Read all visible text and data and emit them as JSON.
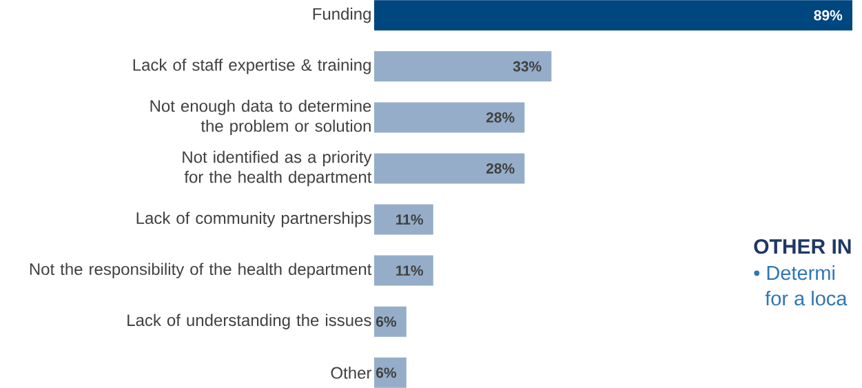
{
  "chart_data": {
    "type": "bar",
    "orientation": "horizontal",
    "categories": [
      "Funding",
      "Lack of staff expertise & training",
      "Not enough data to determine the problem or solution",
      "Not identified as a priority for the health department",
      "Lack of community partnerships",
      "Not the responsibility of the health department",
      "Lack of understanding the issues",
      "Other"
    ],
    "values": [
      89,
      33,
      28,
      28,
      11,
      11,
      6,
      6
    ],
    "colors": [
      "#00467f",
      "#95adc8",
      "#95adc8",
      "#95adc8",
      "#95adc8",
      "#95adc8",
      "#95adc8",
      "#95adc8"
    ],
    "value_labels": [
      "89%",
      "33%",
      "28%",
      "28%",
      "11%",
      "11%",
      "6%",
      "6%"
    ],
    "annotations": [
      "OTHER IN",
      "•  Determi",
      "for a loca"
    ]
  }
}
